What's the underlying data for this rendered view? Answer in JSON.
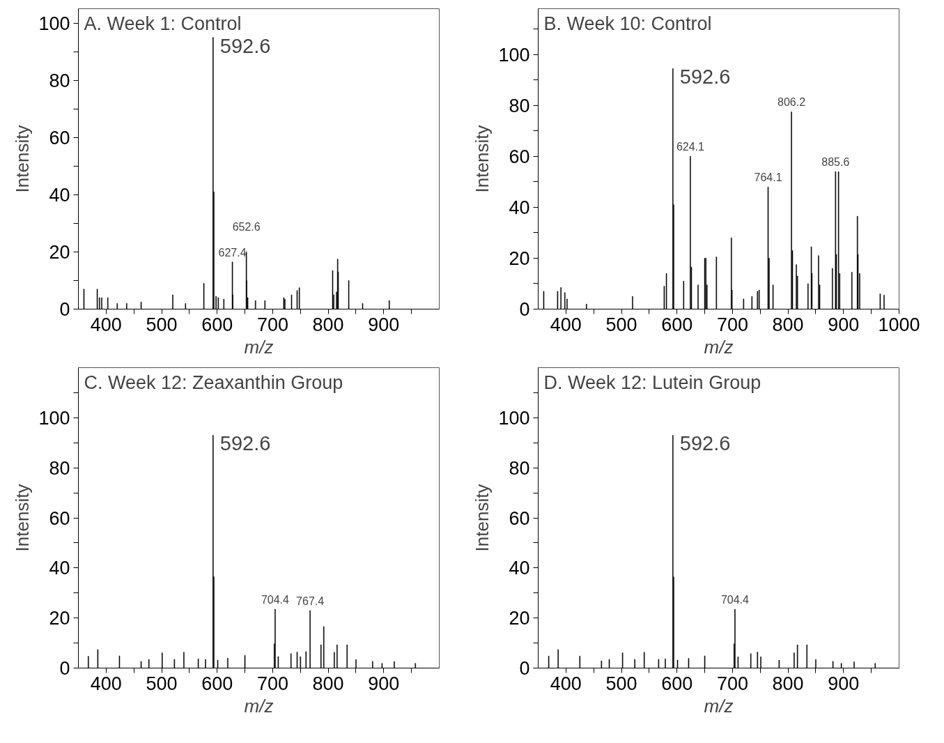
{
  "chart_data": [
    {
      "type": "bar",
      "title": "A. Week 1: Control",
      "xlabel": "m/z",
      "ylabel": "Intensity",
      "color": "#000000",
      "x": [
        360,
        384,
        388,
        392,
        403,
        420,
        437,
        463,
        520,
        543,
        576,
        592.6,
        594,
        598,
        602,
        612,
        627.4,
        628,
        652.6,
        653,
        655,
        669,
        686,
        720,
        722,
        734,
        744,
        748,
        808,
        810,
        815,
        817,
        818,
        837,
        862,
        910
      ],
      "values": [
        7,
        7,
        4,
        4,
        4,
        2,
        2,
        2.5,
        5,
        2,
        9,
        95,
        41,
        4.5,
        4,
        3.5,
        16.5,
        5,
        20,
        10,
        4,
        3,
        3,
        4,
        3.5,
        5,
        6.5,
        7.5,
        13.5,
        5,
        6,
        17.5,
        13,
        10,
        2,
        3
      ],
      "xlim": [
        350,
        1000
      ],
      "ylim": [
        0,
        105
      ],
      "xticks": [
        400,
        {
          "value": 450,
          "label": null
        },
        500,
        {
          "value": 550,
          "label": null
        },
        600,
        {
          "value": 650,
          "label": null
        },
        700,
        {
          "value": 750,
          "label": null
        },
        800,
        {
          "value": 850,
          "label": null
        },
        900,
        {
          "value": 950,
          "label": null
        }
      ],
      "yticks": [
        0,
        {
          "value": 10,
          "label": null
        },
        20,
        {
          "value": 30,
          "label": null
        },
        40,
        {
          "value": 50,
          "label": null
        },
        60,
        {
          "value": 70,
          "label": null
        },
        80,
        {
          "value": 90,
          "label": null
        },
        100
      ],
      "annotations": [
        {
          "text": "592.6",
          "x": 592.6,
          "y": 95
        },
        {
          "text": "627.4",
          "x": 627.4,
          "y": 16.5
        },
        {
          "text": "652.6",
          "x": 652.6,
          "y": 20
        }
      ]
    },
    {
      "type": "bar",
      "title": "B. Week 10: Control",
      "xlabel": "m/z",
      "ylabel": "Intensity",
      "color": "#000000",
      "x": [
        360,
        385,
        391,
        398,
        402,
        437,
        520,
        577,
        581,
        592.6,
        594,
        612,
        624.1,
        626,
        638,
        650,
        652,
        654,
        671,
        698,
        699,
        720,
        735,
        745,
        748,
        764.1,
        766,
        773,
        806.2,
        808,
        815,
        817,
        836,
        842,
        843,
        855,
        857,
        880,
        885.6,
        887,
        891,
        893,
        915,
        925,
        926,
        929,
        966,
        973
      ],
      "values": [
        7,
        7,
        8.5,
        6.5,
        4,
        2,
        5,
        9,
        14,
        94.5,
        41,
        11,
        60,
        16.5,
        9.5,
        20,
        20,
        9.5,
        20.5,
        28,
        7.5,
        4,
        5,
        7,
        7.5,
        48,
        20,
        9.5,
        77.5,
        23,
        17.5,
        13,
        10,
        24.5,
        14,
        21,
        9.5,
        16,
        54,
        21.5,
        54,
        14,
        14.5,
        36.5,
        21.5,
        14,
        6,
        5.5
      ],
      "xlim": [
        350,
        1000
      ],
      "ylim": [
        0,
        118
      ],
      "xticks": [
        400,
        {
          "value": 450,
          "label": null
        },
        500,
        {
          "value": 550,
          "label": null
        },
        600,
        {
          "value": 650,
          "label": null
        },
        700,
        {
          "value": 750,
          "label": null
        },
        800,
        {
          "value": 850,
          "label": null
        },
        900,
        {
          "value": 950,
          "label": null
        },
        1000
      ],
      "yticks": [
        0,
        {
          "value": 10,
          "label": null
        },
        20,
        {
          "value": 30,
          "label": null
        },
        40,
        {
          "value": 50,
          "label": null
        },
        60,
        {
          "value": 70,
          "label": null
        },
        80,
        {
          "value": 90,
          "label": null
        },
        100,
        {
          "value": 110,
          "label": null
        }
      ],
      "annotations": [
        {
          "text": "592.6",
          "x": 592.6,
          "y": 94.5
        },
        {
          "text": "624.1",
          "x": 624.1,
          "y": 60
        },
        {
          "text": "764.1",
          "x": 764.1,
          "y": 48
        },
        {
          "text": "806.2",
          "x": 806.2,
          "y": 77.5
        },
        {
          "text": "885.6",
          "x": 885.6,
          "y": 54
        }
      ]
    },
    {
      "type": "bar",
      "title": "C. Week 12: Zeaxanthin Group",
      "xlabel": "m/z",
      "ylabel": "Intensity",
      "color": "#000000",
      "x": [
        368,
        385,
        424,
        463,
        477,
        501,
        523,
        540,
        566,
        579,
        592.6,
        594,
        601,
        619,
        650,
        703,
        704.4,
        710,
        733,
        744,
        750,
        760,
        767.4,
        787,
        792,
        811,
        816,
        834,
        850,
        880,
        897,
        919,
        957
      ],
      "values": [
        4.7,
        7.4,
        4.9,
        2.7,
        3.5,
        6.1,
        3.5,
        6.3,
        3.7,
        3.5,
        93,
        36.5,
        3.2,
        4,
        5.1,
        9.7,
        23.5,
        4.6,
        5.8,
        6.4,
        4.6,
        6.6,
        23,
        9.3,
        16.6,
        6.3,
        9.3,
        9.3,
        3.4,
        2.7,
        1.9,
        2.6,
        1.9
      ],
      "xlim": [
        350,
        1000
      ],
      "ylim": [
        0,
        120
      ],
      "xticks": [
        400,
        {
          "value": 450,
          "label": null
        },
        500,
        {
          "value": 550,
          "label": null
        },
        600,
        {
          "value": 650,
          "label": null
        },
        700,
        {
          "value": 750,
          "label": null
        },
        800,
        {
          "value": 850,
          "label": null
        },
        900,
        {
          "value": 950,
          "label": null
        }
      ],
      "yticks": [
        0,
        {
          "value": 10,
          "label": null
        },
        20,
        {
          "value": 30,
          "label": null
        },
        40,
        {
          "value": 50,
          "label": null
        },
        60,
        {
          "value": 70,
          "label": null
        },
        80,
        {
          "value": 90,
          "label": null
        },
        100,
        {
          "value": 110,
          "label": null
        }
      ],
      "annotations": [
        {
          "text": "592.6",
          "x": 592.6,
          "y": 93
        },
        {
          "text": "704.4",
          "x": 704.4,
          "y": 23.5
        },
        {
          "text": "767.4",
          "x": 767.4,
          "y": 23
        }
      ]
    },
    {
      "type": "bar",
      "title": "D. Week 12: Lutein Group",
      "xlabel": "m/z",
      "ylabel": "Intensity",
      "color": "#000000",
      "x": [
        369,
        386,
        425,
        464,
        478,
        502,
        524,
        541,
        567,
        579,
        592.6,
        594,
        601,
        621,
        650,
        703,
        704.4,
        710,
        733,
        745,
        751,
        784,
        811,
        817,
        834,
        850,
        881,
        896,
        919,
        957
      ],
      "values": [
        4.8,
        7.4,
        4.8,
        2.9,
        3.5,
        6.1,
        3.5,
        6.3,
        3.5,
        3.7,
        93,
        36.4,
        3.2,
        3.9,
        4.9,
        9.7,
        23.5,
        4.5,
        5.8,
        6.4,
        4.5,
        3.2,
        6.1,
        9.3,
        9.3,
        3.4,
        2.7,
        1.9,
        2.5,
        1.9
      ],
      "xlim": [
        350,
        1000
      ],
      "ylim": [
        0,
        120
      ],
      "xticks": [
        400,
        {
          "value": 450,
          "label": null
        },
        500,
        {
          "value": 550,
          "label": null
        },
        600,
        {
          "value": 650,
          "label": null
        },
        700,
        {
          "value": 750,
          "label": null
        },
        800,
        {
          "value": 850,
          "label": null
        },
        900,
        {
          "value": 950,
          "label": null
        }
      ],
      "yticks": [
        0,
        {
          "value": 10,
          "label": null
        },
        20,
        {
          "value": 30,
          "label": null
        },
        40,
        {
          "value": 50,
          "label": null
        },
        60,
        {
          "value": 70,
          "label": null
        },
        80,
        {
          "value": 90,
          "label": null
        },
        100,
        {
          "value": 110,
          "label": null
        }
      ],
      "annotations": [
        {
          "text": "592.6",
          "x": 592.6,
          "y": 93
        },
        {
          "text": "704.4",
          "x": 704.4,
          "y": 23.5
        }
      ]
    }
  ]
}
